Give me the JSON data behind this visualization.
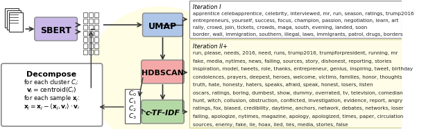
{
  "background_color": "#ffffff",
  "light_yellow_bg": "#fffde7",
  "sbert_color": "#c9b8e8",
  "umap_color": "#aec6e8",
  "hdbscan_color": "#f4a9a8",
  "ctfidf_color": "#b5d9a5",
  "decompose_bg": "#ffffff",
  "decompose_border": "#888888",
  "arrow_color": "#333333",
  "iteration1_text": "Iteration I",
  "iteration2_text": "Iteration II+",
  "iter1_content": "apprentice celebapprentice, celebrity, interviewed, mr, run, season, ratings, trump2016\nentrepreneurs, yourself, success, focus, champion, passion, negotiation, learn, art\nrally, crowd, join, tickets, crowds, maga, south, evening, landed, soon\nborder, wall, immigration, southern, illegal, laws, immigrants, patrol, drugs, borders",
  "iter2_content": "run, please, needs, 2016, need, runs, trump2016, trumpforpresident, running, mr\nfake, media, nytimes, news, failing, sources, story, dishonest, reporting, stories\ninspiration, model, tweets, role, thanks, entrepreneur, genius, inspiring, tweet, birthday\ncondolences, prayers, deepest, heroes, welcome, victims, families, honor, thoughts\ntruth, hate, honesty, haters, speaks, afraid, speak, honest, losers, listen\noscars, ratings, boring, dumbest, show, dummy, overrated, tv, television, comedian\nhunt, witch, collusion, obstruction, conflicted, investigation, evidence, report, angry\nratings, fox, biased, credibility, daytime, anchors, network, debates, networks, loser\nfailing, apologize, nytimes, magazine, apology, apologized, times, paper, circulation\nsources, enemy, fake, lie, hoax, lied, lies, media, stories, false",
  "decompose_title": "Decompose",
  "decompose_lines": [
    "for each cluster $C_i$:",
    "$\\mathbf{v}_i = \\mathrm{centroid}(C_i)$",
    "for each sample $\\mathbf{x}_j$:",
    "$\\mathbf{x}_j = \\mathbf{x}_j - \\langle \\mathbf{x}_j, \\mathbf{v}_i \\rangle \\cdot \\mathbf{v}_i$"
  ],
  "cluster_labels": [
    "$C_0$",
    "$C_1$",
    "$C_2$",
    "$C_3$"
  ]
}
